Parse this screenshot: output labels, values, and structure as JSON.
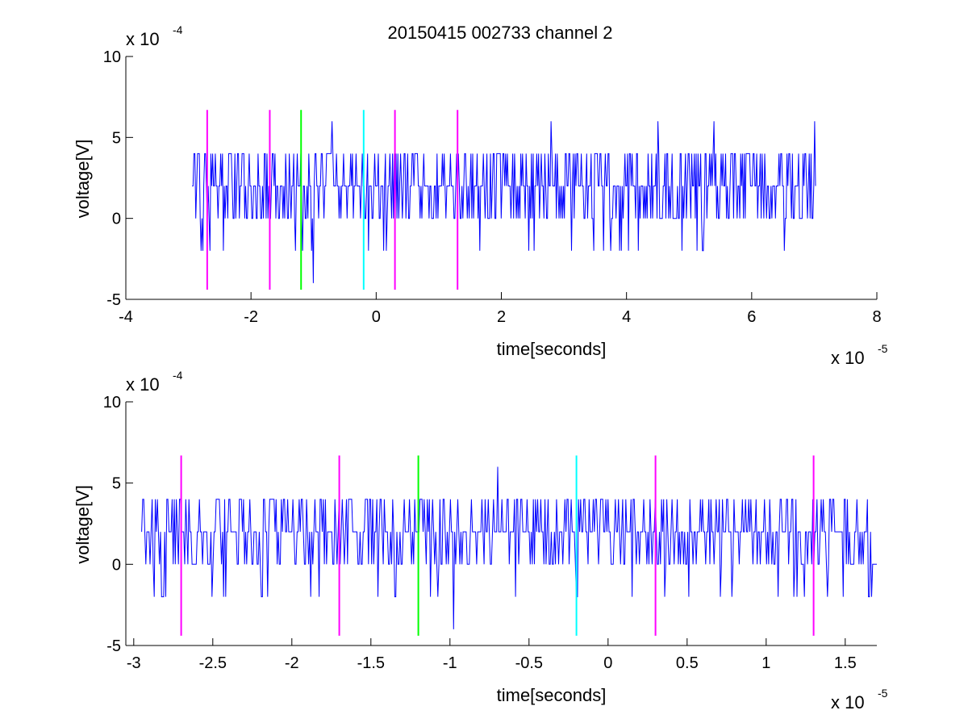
{
  "title": "20150415 002733 channel 2",
  "colors": {
    "signal": "#0000ff",
    "magenta": "#ff00ff",
    "green": "#00ff00",
    "cyan": "#00ffff",
    "axis": "#000000"
  },
  "chart_data": [
    {
      "type": "line",
      "title": "20150415 002733 channel 2",
      "xlabel": "time[seconds]",
      "ylabel": "voltage[V]",
      "x_multiplier": {
        "base": "x 10",
        "exponent": "-5"
      },
      "y_multiplier": {
        "base": "x 10",
        "exponent": "-4"
      },
      "xlim": [
        -4,
        8
      ],
      "ylim": [
        -5,
        10
      ],
      "xticks": [
        "-4",
        "-2",
        "0",
        "2",
        "4",
        "6",
        "8"
      ],
      "yticks": [
        "-5",
        "0",
        "5",
        "10"
      ],
      "xtick_values": [
        -4,
        -2,
        0,
        2,
        4,
        6,
        8
      ],
      "ytick_values": [
        -5,
        0,
        5,
        10
      ],
      "series_range_x": [
        -2.94,
        7.02
      ],
      "series_levels": [
        -2,
        0,
        2,
        4,
        6
      ],
      "series_peaks": [
        {
          "x": -2.8,
          "y": -2
        },
        {
          "x": -1.0,
          "y": -4
        },
        {
          "x": -0.7,
          "y": 6
        },
        {
          "x": 2.8,
          "y": 6
        },
        {
          "x": 4.5,
          "y": 6
        },
        {
          "x": 5.4,
          "y": 6
        },
        {
          "x": 7.0,
          "y": 6
        }
      ],
      "vertical_markers": [
        {
          "x": -2.7,
          "color": "magenta"
        },
        {
          "x": -1.7,
          "color": "magenta"
        },
        {
          "x": -1.2,
          "color": "green"
        },
        {
          "x": -0.2,
          "color": "cyan"
        },
        {
          "x": 0.3,
          "color": "magenta"
        },
        {
          "x": 1.3,
          "color": "magenta"
        }
      ],
      "marker_y_range": [
        -4.4,
        6.7
      ]
    },
    {
      "type": "line",
      "title": "",
      "xlabel": "time[seconds]",
      "ylabel": "voltage[V]",
      "x_multiplier": {
        "base": "x 10",
        "exponent": "-5"
      },
      "y_multiplier": {
        "base": "x 10",
        "exponent": "-4"
      },
      "xlim": [
        -3.05,
        1.7
      ],
      "ylim": [
        -5,
        10
      ],
      "xticks": [
        "-3",
        "-2.5",
        "-2",
        "-1.5",
        "-1",
        "-0.5",
        "0",
        "0.5",
        "1",
        "1.5"
      ],
      "yticks": [
        "-5",
        "0",
        "5",
        "10"
      ],
      "xtick_values": [
        -3,
        -2.5,
        -2,
        -1.5,
        -1,
        -0.5,
        0,
        0.5,
        1,
        1.5
      ],
      "ytick_values": [
        -5,
        0,
        5,
        10
      ],
      "series_range_x": [
        -2.95,
        1.7
      ],
      "series_levels": [
        -2,
        0,
        2,
        4,
        6
      ],
      "series_peaks": [
        {
          "x": -2.8,
          "y": -2
        },
        {
          "x": -1.88,
          "y": -2
        },
        {
          "x": -1.35,
          "y": -2
        },
        {
          "x": -0.98,
          "y": -4
        },
        {
          "x": -0.7,
          "y": 6
        },
        {
          "x": -0.2,
          "y": -2
        },
        {
          "x": 1.65,
          "y": -2
        }
      ],
      "vertical_markers": [
        {
          "x": -2.7,
          "color": "magenta"
        },
        {
          "x": -1.7,
          "color": "magenta"
        },
        {
          "x": -1.2,
          "color": "green"
        },
        {
          "x": -0.2,
          "color": "cyan"
        },
        {
          "x": 0.3,
          "color": "magenta"
        },
        {
          "x": 1.3,
          "color": "magenta"
        }
      ],
      "marker_y_range": [
        -4.4,
        6.7
      ]
    }
  ]
}
